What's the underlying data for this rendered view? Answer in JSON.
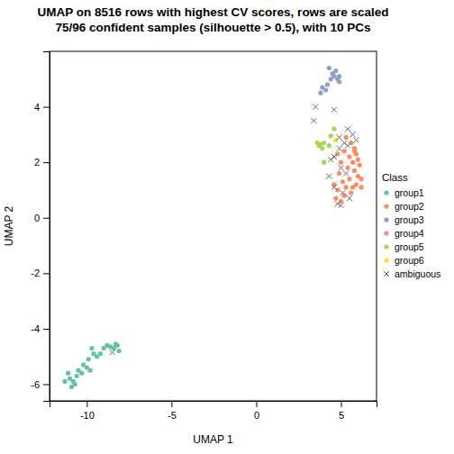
{
  "chart_data": {
    "type": "scatter",
    "title": [
      "UMAP on 8516 rows with highest CV scores, rows are scaled",
      "75/96 confident samples (silhouette > 0.5), with 10 PCs"
    ],
    "x_label": "UMAP 1",
    "y_label": "UMAP 2",
    "legend_title": "Class",
    "legend": "right",
    "xlim": [
      -12.2,
      7.1
    ],
    "ylim": [
      -6.6,
      6.0
    ],
    "xticks": [
      -10,
      -5,
      0,
      5
    ],
    "yticks": [
      -6,
      -4,
      -2,
      0,
      2,
      4
    ],
    "series": [
      {
        "name": "group1",
        "color": "#66C2A5",
        "marker": "circle",
        "x": [
          -11.3,
          -11.0,
          -10.9,
          -10.7,
          -11.1,
          -10.6,
          -10.5,
          -10.2,
          -10.0,
          -9.8,
          -9.9,
          -9.6,
          -9.7,
          -9.2,
          -9.0,
          -8.8,
          -8.6,
          -8.4,
          -8.2,
          -8.1,
          -8.3,
          -10.3,
          -9.4,
          -10.8
        ],
        "values": [
          -5.9,
          -5.8,
          -6.1,
          -6.0,
          -5.6,
          -5.7,
          -5.5,
          -5.3,
          -5.4,
          -5.5,
          -5.1,
          -4.9,
          -4.7,
          -4.9,
          -4.7,
          -4.6,
          -4.65,
          -4.7,
          -4.6,
          -4.8,
          -4.55,
          -5.6,
          -5.0,
          -5.9
        ]
      },
      {
        "name": "group2",
        "color": "#FC8D62",
        "marker": "circle",
        "x": [
          5.3,
          5.6,
          5.8,
          5.9,
          5.2,
          5.5,
          5.7,
          6.0,
          5.8,
          6.0,
          6.2,
          5.9,
          6.2,
          4.6,
          4.8,
          5.1,
          5.3,
          4.7,
          5.0,
          5.2,
          5.5,
          5.0,
          4.9,
          5.6,
          5.4,
          6.1,
          4.8,
          5.7,
          5.8
        ],
        "values": [
          2.9,
          2.7,
          2.5,
          2.3,
          2.4,
          2.2,
          2.0,
          2.1,
          1.7,
          1.5,
          1.4,
          1.2,
          1.1,
          1.2,
          1.0,
          1.3,
          1.1,
          0.7,
          0.6,
          0.8,
          1.4,
          2.0,
          1.6,
          0.9,
          1.8,
          1.9,
          2.3,
          1.1,
          2.4
        ]
      },
      {
        "name": "group3",
        "color": "#8DA0CB",
        "marker": "circle",
        "x": [
          4.3,
          4.5,
          4.6,
          4.8,
          4.9,
          4.7,
          4.4,
          4.2,
          3.9,
          3.8,
          4.1,
          4.9
        ],
        "values": [
          5.4,
          5.2,
          5.1,
          5.0,
          4.9,
          5.3,
          5.0,
          4.8,
          4.7,
          4.5,
          4.6,
          5.1
        ]
      },
      {
        "name": "group4",
        "color": "#E78AC3",
        "marker": "circle",
        "x": [],
        "values": []
      },
      {
        "name": "group5",
        "color": "#A6D854",
        "marker": "circle",
        "x": [
          3.6,
          3.8,
          4.0,
          3.9,
          4.3,
          4.0,
          4.6,
          4.4,
          3.7
        ],
        "values": [
          2.7,
          2.65,
          2.7,
          2.5,
          2.6,
          2.0,
          3.2,
          2.95,
          2.6
        ]
      },
      {
        "name": "group6",
        "color": "#FFD92F",
        "marker": "circle",
        "x": [
          4.7
        ],
        "values": [
          2.8
        ]
      },
      {
        "name": "ambiguous",
        "color": "#666666",
        "marker": "x",
        "x": [
          -8.5,
          3.5,
          4.6,
          3.4,
          5.4,
          5.7,
          5.2,
          4.9,
          4.6,
          5.4,
          4.3,
          5.9,
          5.0,
          4.8,
          5.0,
          5.5,
          4.6,
          5.3,
          4.9,
          5.1,
          4.4
        ],
        "values": [
          -4.85,
          4.0,
          3.9,
          3.5,
          3.2,
          3.0,
          2.7,
          2.5,
          2.2,
          2.6,
          1.5,
          2.8,
          1.8,
          0.5,
          0.45,
          0.7,
          1.1,
          1.6,
          2.9,
          0.9,
          2.1
        ]
      }
    ]
  }
}
